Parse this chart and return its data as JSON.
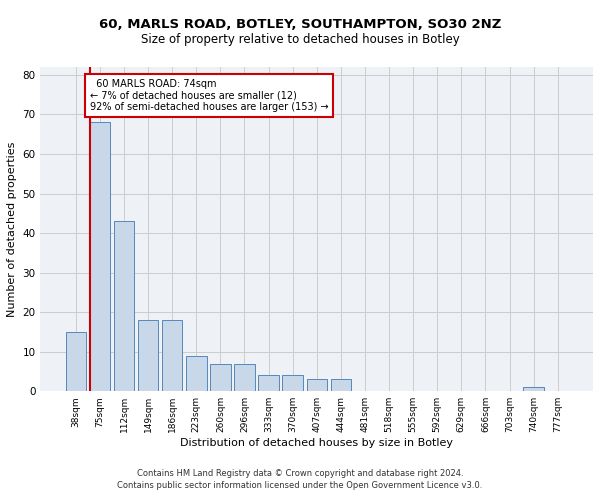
{
  "title_line1": "60, MARLS ROAD, BOTLEY, SOUTHAMPTON, SO30 2NZ",
  "title_line2": "Size of property relative to detached houses in Botley",
  "xlabel": "Distribution of detached houses by size in Botley",
  "ylabel": "Number of detached properties",
  "categories": [
    "38sqm",
    "75sqm",
    "112sqm",
    "149sqm",
    "186sqm",
    "223sqm",
    "260sqm",
    "296sqm",
    "333sqm",
    "370sqm",
    "407sqm",
    "444sqm",
    "481sqm",
    "518sqm",
    "555sqm",
    "592sqm",
    "629sqm",
    "666sqm",
    "703sqm",
    "740sqm",
    "777sqm"
  ],
  "values": [
    15,
    68,
    43,
    18,
    18,
    9,
    7,
    7,
    4,
    4,
    3,
    3,
    0,
    0,
    0,
    0,
    0,
    0,
    0,
    1,
    0
  ],
  "bar_color": "#c8d8e8",
  "bar_edge_color": "#5588bb",
  "highlight_index": 1,
  "highlight_line_color": "#cc0000",
  "annotation_text": "  60 MARLS ROAD: 74sqm\n← 7% of detached houses are smaller (12)\n92% of semi-detached houses are larger (153) →",
  "annotation_box_color": "#ffffff",
  "annotation_box_edge": "#cc0000",
  "ylim": [
    0,
    82
  ],
  "yticks": [
    0,
    10,
    20,
    30,
    40,
    50,
    60,
    70,
    80
  ],
  "grid_color": "#cccccc",
  "bg_color": "#eef2f7",
  "footer_line1": "Contains HM Land Registry data © Crown copyright and database right 2024.",
  "footer_line2": "Contains public sector information licensed under the Open Government Licence v3.0."
}
